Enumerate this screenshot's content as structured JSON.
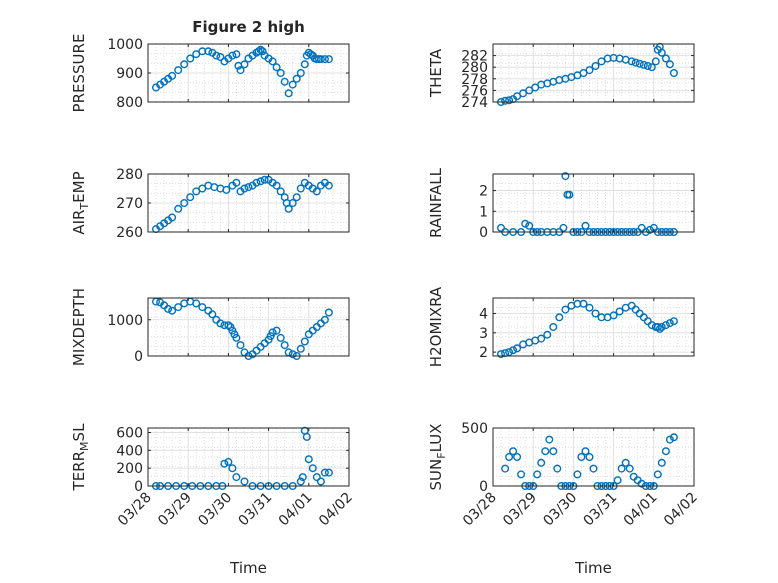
{
  "figure": {
    "title": "Figure 2 high",
    "marker_color": "#0072bd"
  },
  "chart_data": [
    {
      "type": "scatter",
      "title": "Figure 2 high",
      "ylabel": "PRESSURE",
      "xlabel": "",
      "xlim": [
        0,
        5
      ],
      "ylim": [
        800,
        1000
      ],
      "yticks": [
        800,
        900,
        1000
      ],
      "grid": "on (major and minor, dotted)",
      "x": [
        0.2,
        0.3,
        0.4,
        0.5,
        0.6,
        0.75,
        0.9,
        1.05,
        1.2,
        1.35,
        1.5,
        1.6,
        1.7,
        1.8,
        1.9,
        2.0,
        2.1,
        2.2,
        2.25,
        2.3,
        2.4,
        2.5,
        2.6,
        2.7,
        2.75,
        2.8,
        2.85,
        2.9,
        3.0,
        3.1,
        3.2,
        3.3,
        3.4,
        3.5,
        3.6,
        3.7,
        3.8,
        3.9,
        3.95,
        4.0,
        4.05,
        4.1,
        4.15,
        4.2,
        4.25,
        4.3,
        4.4,
        4.5
      ],
      "y": [
        850,
        860,
        870,
        880,
        890,
        910,
        930,
        950,
        965,
        975,
        975,
        970,
        960,
        955,
        940,
        950,
        960,
        965,
        925,
        910,
        930,
        950,
        960,
        970,
        975,
        980,
        975,
        960,
        950,
        940,
        920,
        900,
        870,
        830,
        860,
        880,
        900,
        930,
        960,
        970,
        965,
        960,
        950,
        948,
        948,
        948,
        948,
        948
      ]
    },
    {
      "type": "scatter",
      "ylabel": "THETA",
      "xlabel": "",
      "xlim": [
        0,
        5
      ],
      "ylim": [
        274,
        284
      ],
      "yticks": [
        274,
        276,
        278,
        280,
        282
      ],
      "grid": "on (major and minor, dotted)",
      "x": [
        0.2,
        0.3,
        0.4,
        0.5,
        0.6,
        0.75,
        0.9,
        1.05,
        1.2,
        1.35,
        1.5,
        1.65,
        1.8,
        1.95,
        2.1,
        2.25,
        2.4,
        2.55,
        2.7,
        2.85,
        3.0,
        3.15,
        3.3,
        3.45,
        3.55,
        3.65,
        3.75,
        3.85,
        3.95,
        4.05,
        4.1,
        4.15,
        4.2,
        4.3,
        4.4,
        4.5
      ],
      "y": [
        274,
        274.2,
        274.3,
        274.5,
        275,
        275.5,
        276,
        276.5,
        277,
        277.2,
        277.5,
        277.8,
        278,
        278.3,
        278.6,
        279,
        279.5,
        280.2,
        281,
        281.5,
        281.6,
        281.5,
        281.3,
        281,
        280.8,
        280.6,
        280.4,
        280.2,
        280,
        281,
        283,
        283.5,
        282.5,
        281.5,
        280.5,
        279
      ]
    },
    {
      "type": "scatter",
      "ylabel": "AIR_TEMP",
      "xlabel": "",
      "xlim": [
        0,
        5
      ],
      "ylim": [
        260,
        280
      ],
      "yticks": [
        260,
        270,
        280
      ],
      "grid": "on (major and minor, dotted)",
      "x": [
        0.2,
        0.3,
        0.4,
        0.5,
        0.6,
        0.75,
        0.9,
        1.05,
        1.2,
        1.35,
        1.5,
        1.65,
        1.8,
        1.95,
        2.1,
        2.2,
        2.3,
        2.4,
        2.5,
        2.6,
        2.7,
        2.8,
        2.9,
        3.0,
        3.1,
        3.2,
        3.3,
        3.4,
        3.45,
        3.5,
        3.6,
        3.7,
        3.8,
        3.9,
        4.0,
        4.1,
        4.2,
        4.3,
        4.4,
        4.5
      ],
      "y": [
        261,
        262,
        263,
        264,
        265,
        268,
        270,
        272,
        274,
        275,
        276,
        275.5,
        275,
        274.5,
        276,
        277,
        274,
        275,
        275.5,
        276,
        277,
        277.5,
        278,
        278,
        277,
        276,
        274,
        272,
        270,
        268,
        270,
        272,
        275,
        277,
        276,
        275,
        274,
        276,
        277,
        276
      ]
    },
    {
      "type": "scatter",
      "ylabel": "RAINFALL",
      "xlabel": "",
      "xlim": [
        0,
        5
      ],
      "ylim": [
        0,
        2.8
      ],
      "yticks": [
        0,
        1,
        2
      ],
      "grid": "on (major and minor, dotted)",
      "x": [
        0.2,
        0.3,
        0.5,
        0.7,
        0.8,
        0.9,
        1.0,
        1.1,
        1.2,
        1.35,
        1.5,
        1.65,
        1.75,
        1.8,
        1.85,
        1.9,
        2.0,
        2.1,
        2.2,
        2.3,
        2.4,
        2.5,
        2.6,
        2.7,
        2.8,
        2.9,
        3.0,
        3.1,
        3.2,
        3.3,
        3.4,
        3.5,
        3.6,
        3.7,
        3.8,
        3.9,
        4.0,
        4.1,
        4.2,
        4.3,
        4.4,
        4.5
      ],
      "y": [
        0.2,
        0,
        0,
        0,
        0.4,
        0.3,
        0,
        0,
        0,
        0,
        0,
        0,
        0.2,
        2.7,
        1.8,
        1.8,
        0,
        0,
        0,
        0.3,
        0,
        0,
        0,
        0,
        0,
        0,
        0,
        0,
        0,
        0,
        0,
        0,
        0,
        0.2,
        0,
        0.1,
        0.2,
        0,
        0,
        0,
        0,
        0
      ]
    },
    {
      "type": "scatter",
      "ylabel": "MIXDEPTH",
      "xlabel": "",
      "xlim": [
        0,
        5
      ],
      "ylim": [
        0,
        1600
      ],
      "yticks": [
        0,
        1000
      ],
      "grid": "on (major and minor, dotted)",
      "x": [
        0.2,
        0.3,
        0.4,
        0.5,
        0.6,
        0.75,
        0.9,
        1.05,
        1.2,
        1.35,
        1.5,
        1.6,
        1.7,
        1.8,
        1.9,
        2.0,
        2.05,
        2.1,
        2.15,
        2.2,
        2.3,
        2.4,
        2.5,
        2.6,
        2.7,
        2.8,
        2.9,
        3.0,
        3.05,
        3.1,
        3.2,
        3.3,
        3.4,
        3.5,
        3.6,
        3.7,
        3.8,
        3.9,
        4.0,
        4.1,
        4.2,
        4.3,
        4.4,
        4.5
      ],
      "y": [
        1500,
        1480,
        1400,
        1300,
        1250,
        1350,
        1450,
        1500,
        1450,
        1350,
        1250,
        1150,
        1000,
        900,
        850,
        850,
        800,
        700,
        600,
        500,
        300,
        100,
        0,
        50,
        150,
        250,
        350,
        450,
        550,
        650,
        700,
        500,
        300,
        100,
        50,
        0,
        200,
        400,
        600,
        700,
        800,
        900,
        1000,
        1200
      ]
    },
    {
      "type": "scatter",
      "ylabel": "H2OMIXRA",
      "xlabel": "",
      "xlim": [
        0,
        5
      ],
      "ylim": [
        1.8,
        4.8
      ],
      "yticks": [
        2,
        3,
        4
      ],
      "grid": "on (major and minor, dotted)",
      "x": [
        0.2,
        0.3,
        0.4,
        0.5,
        0.6,
        0.75,
        0.9,
        1.05,
        1.2,
        1.35,
        1.5,
        1.65,
        1.8,
        1.95,
        2.1,
        2.25,
        2.4,
        2.55,
        2.7,
        2.85,
        3.0,
        3.15,
        3.3,
        3.45,
        3.55,
        3.65,
        3.75,
        3.85,
        3.95,
        4.05,
        4.1,
        4.15,
        4.2,
        4.3,
        4.4,
        4.5
      ],
      "y": [
        1.9,
        1.95,
        2.0,
        2.1,
        2.2,
        2.4,
        2.5,
        2.6,
        2.7,
        2.9,
        3.3,
        3.8,
        4.2,
        4.4,
        4.5,
        4.5,
        4.3,
        4.0,
        3.8,
        3.8,
        3.9,
        4.1,
        4.3,
        4.4,
        4.2,
        4.0,
        3.8,
        3.6,
        3.4,
        3.3,
        3.3,
        3.2,
        3.3,
        3.4,
        3.5,
        3.6
      ]
    },
    {
      "type": "scatter",
      "ylabel": "TERR_MSL",
      "xlabel": "Time",
      "xlim": [
        0,
        5
      ],
      "ylim": [
        0,
        650
      ],
      "yticks": [
        0,
        200,
        400,
        600
      ],
      "xtick_labels": [
        "03/28",
        "03/29",
        "03/30",
        "03/31",
        "04/01",
        "04/02"
      ],
      "grid": "on (major and minor, dotted)",
      "x": [
        0.2,
        0.3,
        0.5,
        0.7,
        0.9,
        1.1,
        1.3,
        1.5,
        1.7,
        1.85,
        1.9,
        2.0,
        2.1,
        2.2,
        2.4,
        2.6,
        2.8,
        3.0,
        3.2,
        3.4,
        3.6,
        3.8,
        3.85,
        3.9,
        3.95,
        4.0,
        4.1,
        4.2,
        4.3,
        4.4,
        4.5
      ],
      "y": [
        0,
        0,
        0,
        0,
        0,
        0,
        0,
        0,
        0,
        0,
        250,
        270,
        200,
        100,
        50,
        0,
        0,
        0,
        0,
        0,
        0,
        50,
        100,
        620,
        550,
        300,
        200,
        100,
        50,
        150,
        150
      ]
    },
    {
      "type": "scatter",
      "ylabel": "SUN_FLUX",
      "xlabel": "Time",
      "xlim": [
        0,
        5
      ],
      "ylim": [
        0,
        500
      ],
      "yticks": [
        0,
        500
      ],
      "xtick_labels": [
        "03/28",
        "03/29",
        "03/30",
        "03/31",
        "04/01",
        "04/02"
      ],
      "grid": "on (major and minor, dotted)",
      "x": [
        0.3,
        0.4,
        0.5,
        0.6,
        0.7,
        0.8,
        0.9,
        1.0,
        1.1,
        1.2,
        1.3,
        1.4,
        1.5,
        1.6,
        1.7,
        1.8,
        1.9,
        2.0,
        2.1,
        2.2,
        2.3,
        2.4,
        2.5,
        2.6,
        2.7,
        2.8,
        2.9,
        3.0,
        3.1,
        3.2,
        3.3,
        3.4,
        3.5,
        3.6,
        3.7,
        3.8,
        3.9,
        4.0,
        4.1,
        4.2,
        4.3,
        4.4,
        4.5
      ],
      "y": [
        150,
        250,
        300,
        250,
        100,
        0,
        0,
        0,
        100,
        200,
        300,
        400,
        300,
        150,
        0,
        0,
        0,
        0,
        100,
        250,
        300,
        250,
        150,
        0,
        0,
        0,
        0,
        0,
        50,
        150,
        200,
        150,
        80,
        50,
        20,
        0,
        0,
        0,
        100,
        200,
        300,
        400,
        420
      ]
    }
  ]
}
